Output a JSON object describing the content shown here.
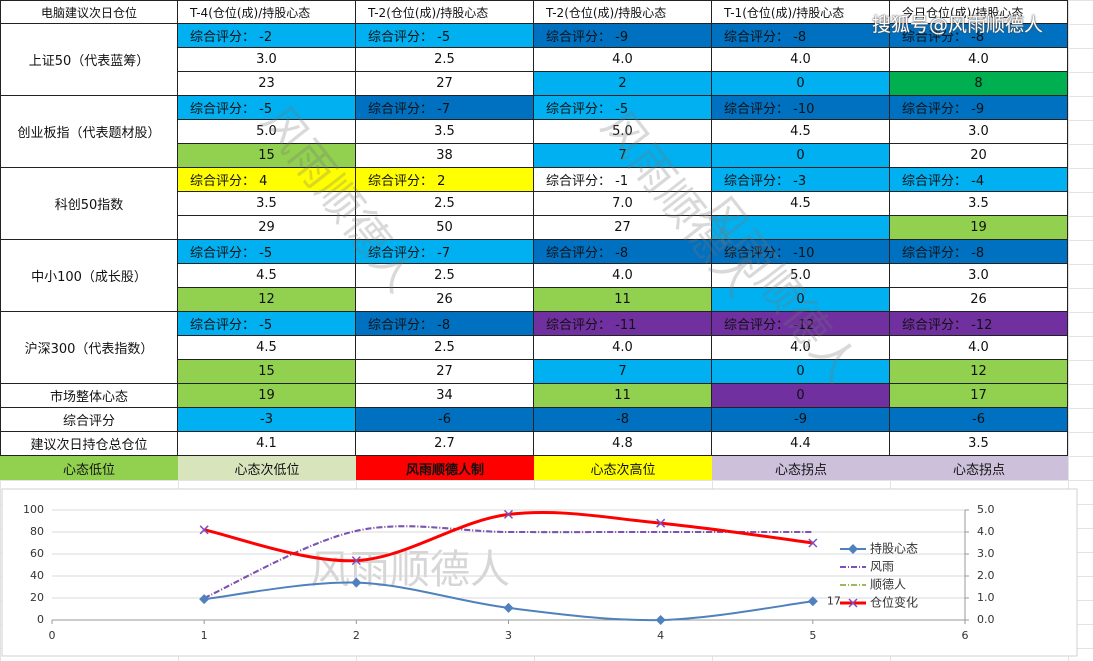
{
  "header": [
    "电脑建议次日仓位",
    "T-4(仓位(成)/持股心态",
    "T-2(仓位(成)/持股心态",
    "T-2(仓位(成)/持股心态",
    "T-1(仓位(成)/持股心态",
    "今日仓位(成)/持股心态"
  ],
  "blocks": [
    {
      "label": "上证50（代表蓝筹）",
      "rows": [
        [
          {
            "text": "综合评分： -2",
            "color": "#00b0f0"
          },
          {
            "text": "综合评分： -5",
            "color": "#00b0f0"
          },
          {
            "text": "综合评分： -9",
            "color": "#0070c0"
          },
          {
            "text": "综合评分： -8",
            "color": "#0070c0"
          },
          {
            "text": "综合评分： -8",
            "color": "#0070c0"
          }
        ],
        [
          {
            "text": "3.0",
            "color": "#ffffff"
          },
          {
            "text": "2.5",
            "color": "#ffffff"
          },
          {
            "text": "4.0",
            "color": "#ffffff"
          },
          {
            "text": "4.0",
            "color": "#ffffff"
          },
          {
            "text": "4.0",
            "color": "#ffffff"
          }
        ],
        [
          {
            "text": "23",
            "color": "#ffffff"
          },
          {
            "text": "27",
            "color": "#ffffff"
          },
          {
            "text": "2",
            "color": "#00b0f0"
          },
          {
            "text": "0",
            "color": "#00b0f0"
          },
          {
            "text": "8",
            "color": "#00b050"
          }
        ]
      ]
    },
    {
      "label": "创业板指（代表题材股）",
      "rows": [
        [
          {
            "text": "综合评分： -5",
            "color": "#00b0f0"
          },
          {
            "text": "综合评分： -7",
            "color": "#0070c0"
          },
          {
            "text": "综合评分： -5",
            "color": "#00b0f0"
          },
          {
            "text": "综合评分： -10",
            "color": "#0070c0"
          },
          {
            "text": "综合评分： -9",
            "color": "#0070c0"
          }
        ],
        [
          {
            "text": "5.0",
            "color": "#ffffff"
          },
          {
            "text": "3.5",
            "color": "#ffffff"
          },
          {
            "text": "5.0",
            "color": "#ffffff"
          },
          {
            "text": "4.5",
            "color": "#ffffff"
          },
          {
            "text": "3.0",
            "color": "#ffffff"
          }
        ],
        [
          {
            "text": "15",
            "color": "#92d050"
          },
          {
            "text": "38",
            "color": "#ffffff"
          },
          {
            "text": "7",
            "color": "#00b0f0"
          },
          {
            "text": "0",
            "color": "#00b0f0"
          },
          {
            "text": "20",
            "color": "#ffffff"
          }
        ]
      ]
    },
    {
      "label": "科创50指数",
      "rows": [
        [
          {
            "text": "综合评分： 4",
            "color": "#ffff00"
          },
          {
            "text": "综合评分： 2",
            "color": "#ffff00"
          },
          {
            "text": "综合评分： -1",
            "color": "#ffffff"
          },
          {
            "text": "综合评分： -3",
            "color": "#00b0f0"
          },
          {
            "text": "综合评分： -4",
            "color": "#00b0f0"
          }
        ],
        [
          {
            "text": "3.5",
            "color": "#ffffff"
          },
          {
            "text": "2.5",
            "color": "#ffffff"
          },
          {
            "text": "7.0",
            "color": "#ffffff"
          },
          {
            "text": "4.5",
            "color": "#ffffff"
          },
          {
            "text": "3.5",
            "color": "#ffffff"
          }
        ],
        [
          {
            "text": "29",
            "color": "#ffffff"
          },
          {
            "text": "50",
            "color": "#ffffff"
          },
          {
            "text": "27",
            "color": "#ffffff"
          },
          {
            "text": null,
            "color": "#00b0f0"
          },
          {
            "text": "19",
            "color": "#92d050"
          }
        ]
      ]
    },
    {
      "label": "中小100（成长股）",
      "rows": [
        [
          {
            "text": "综合评分： -5",
            "color": "#00b0f0"
          },
          {
            "text": "综合评分： -7",
            "color": "#00b0f0"
          },
          {
            "text": "综合评分： -8",
            "color": "#0070c0"
          },
          {
            "text": "综合评分： -10",
            "color": "#0070c0"
          },
          {
            "text": "综合评分： -8",
            "color": "#0070c0"
          }
        ],
        [
          {
            "text": "4.5",
            "color": "#ffffff"
          },
          {
            "text": "2.5",
            "color": "#ffffff"
          },
          {
            "text": "4.0",
            "color": "#ffffff"
          },
          {
            "text": "5.0",
            "color": "#ffffff"
          },
          {
            "text": "3.0",
            "color": "#ffffff"
          }
        ],
        [
          {
            "text": "12",
            "color": "#92d050"
          },
          {
            "text": "26",
            "color": "#ffffff"
          },
          {
            "text": "11",
            "color": "#92d050"
          },
          {
            "text": "0",
            "color": "#00b0f0"
          },
          {
            "text": "26",
            "color": "#ffffff"
          }
        ]
      ]
    },
    {
      "label": "沪深300（代表指数）",
      "rows": [
        [
          {
            "text": "综合评分： -5",
            "color": "#00b0f0"
          },
          {
            "text": "综合评分： -8",
            "color": "#0070c0"
          },
          {
            "text": "综合评分： -11",
            "color": "#7030a0"
          },
          {
            "text": "综合评分： -12",
            "color": "#7030a0"
          },
          {
            "text": "综合评分： -12",
            "color": "#7030a0"
          }
        ],
        [
          {
            "text": "4.5",
            "color": "#ffffff"
          },
          {
            "text": "2.5",
            "color": "#ffffff"
          },
          {
            "text": "4.0",
            "color": "#ffffff"
          },
          {
            "text": "4.0",
            "color": "#ffffff"
          },
          {
            "text": "4.0",
            "color": "#ffffff"
          }
        ],
        [
          {
            "text": "15",
            "color": "#92d050"
          },
          {
            "text": "27",
            "color": "#ffffff"
          },
          {
            "text": "7",
            "color": "#00b0f0"
          },
          {
            "text": "0",
            "color": "#00b0f0"
          },
          {
            "text": "12",
            "color": "#92d050"
          }
        ]
      ]
    }
  ],
  "summary_rows": [
    {
      "label": "市场整体心态",
      "cells": [
        {
          "text": "19",
          "color": "#92d050"
        },
        {
          "text": "34",
          "color": "#ffffff"
        },
        {
          "text": "11",
          "color": "#92d050"
        },
        {
          "text": "0",
          "color": "#7030a0"
        },
        {
          "text": "17",
          "color": "#92d050"
        }
      ]
    },
    {
      "label": "综合评分",
      "cells": [
        {
          "text": "-3",
          "color": "#00b0f0"
        },
        {
          "text": "-6",
          "color": "#0070c0"
        },
        {
          "text": "-8",
          "color": "#0070c0"
        },
        {
          "text": "-9",
          "color": "#0070c0"
        },
        {
          "text": "-6",
          "color": "#0070c0"
        }
      ]
    },
    {
      "label": "建议次日持仓总仓位",
      "cells": [
        {
          "text": "4.1",
          "color": "#ffffff"
        },
        {
          "text": "2.7",
          "color": "#ffffff"
        },
        {
          "text": "4.8",
          "color": "#ffffff"
        },
        {
          "text": "4.4",
          "color": "#ffffff"
        },
        {
          "text": "3.5",
          "color": "#ffffff"
        }
      ]
    }
  ],
  "legend_row": [
    {
      "text": "心态低位",
      "color": "#92d050"
    },
    {
      "text": "心态次低位",
      "color": "#d8e4bc"
    },
    {
      "text": "风雨顺德人制",
      "color": "#ff0000"
    },
    {
      "text": "心态次高位",
      "color": "#ffff00"
    },
    {
      "text": "心态拐点",
      "color": "#ccc0da"
    },
    {
      "text": "心态拐点",
      "color": "#ccc0da"
    }
  ],
  "watermark": "搜狐号@风雨顺德人",
  "diagonal_watermarks": [
    "风雨顺德人",
    "风雨顺德人",
    "风雨顺德人"
  ],
  "chart_data": {
    "type": "line",
    "watermark": "风雨顺德人",
    "x": [
      1,
      2,
      3,
      4,
      5
    ],
    "xlim": [
      0,
      6
    ],
    "xticks": [
      0,
      1,
      2,
      3,
      4,
      5,
      6
    ],
    "ylim": [
      0,
      100
    ],
    "yticks": [
      0,
      20,
      40,
      60,
      80,
      100
    ],
    "y2lim": [
      0,
      5
    ],
    "y2ticks": [
      {
        "value": 0,
        "label": "0.0"
      },
      {
        "value": 1,
        "label": "1.0"
      },
      {
        "value": 2,
        "label": "2.0"
      },
      {
        "value": 3,
        "label": "3.0"
      },
      {
        "value": 4,
        "label": "4.0"
      },
      {
        "value": 5,
        "label": "5.0"
      }
    ],
    "grid": true,
    "legend": "right",
    "series": [
      {
        "name": "持股心态",
        "color": "#4f81bd",
        "values": [
          19,
          34,
          11,
          0,
          17
        ],
        "value_labels": [
          null,
          null,
          null,
          null,
          "17"
        ],
        "marker": "diamond"
      },
      {
        "name": "风雨",
        "color": "#7f4fbd",
        "values": [
          20,
          81,
          80,
          80,
          80
        ],
        "dash": "6 2 1 2"
      },
      {
        "name": "顺德人",
        "color": "#9bbb59",
        "values": [
          20,
          81,
          80,
          80,
          80
        ],
        "dash": "6 2 1 2"
      },
      {
        "name": "仓位变化",
        "color": "#ff0000",
        "values": [
          4.1,
          2.7,
          4.8,
          4.4,
          3.5
        ],
        "axis": "y2",
        "marker": "x",
        "width": 3
      }
    ]
  }
}
